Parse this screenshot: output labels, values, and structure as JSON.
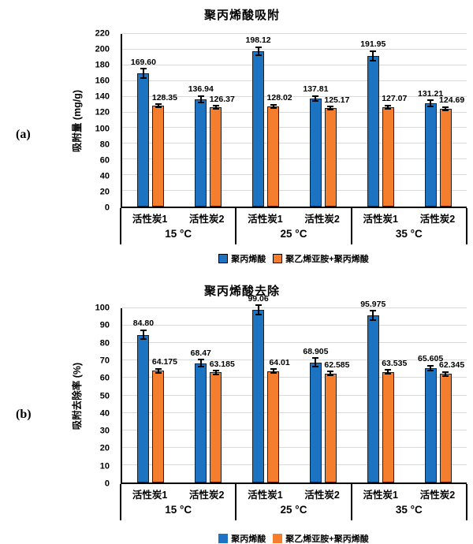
{
  "chart_data": [
    {
      "type": "bar",
      "panel_label": "(a)",
      "title": "聚丙烯酸吸附",
      "y_axis": {
        "label": "吸附量 (mg/g)",
        "min": 0,
        "max": 220,
        "step": 20
      },
      "x_axis": {
        "groups": [
          "15 °C",
          "25 °C",
          "35 °C"
        ],
        "categories": [
          "活性炭1",
          "活性炭2"
        ],
        "value_order": "15°C-活性炭1, 15°C-活性炭2, 25°C-活性炭1, 25°C-活性炭2, 35°C-活性炭1, 35°C-活性炭2"
      },
      "series": [
        {
          "name": "聚丙烯酸",
          "color": "#1B73C2",
          "values": [
            "169.60",
            "136.94",
            "198.12",
            "137.81",
            "191.95",
            "131.21"
          ],
          "errors": [
            7,
            5,
            6,
            4,
            7,
            5
          ]
        },
        {
          "name": "聚乙烯亚胺+聚丙烯酸",
          "color": "#F47E2D",
          "values": [
            "128.35",
            "126.37",
            "128.02",
            "125.17",
            "127.07",
            "124.69"
          ],
          "errors": [
            3,
            3,
            3,
            3,
            3,
            3
          ]
        }
      ],
      "legend": {
        "position": "bottom",
        "swatch_border": true
      },
      "grid": true,
      "colors": {
        "axis": "#000000",
        "gridline": "#d9d9d9"
      }
    },
    {
      "type": "bar",
      "panel_label": "(b)",
      "title": "聚丙烯酸去除",
      "y_axis": {
        "label": "吸附去除率 (%)",
        "min": 0,
        "max": 100,
        "step": 10
      },
      "x_axis": {
        "groups": [
          "15 °C",
          "25 °C",
          "35 °C"
        ],
        "categories": [
          "活性炭1",
          "活性炭2"
        ],
        "value_order": "15°C-活性炭1, 15°C-活性炭2, 25°C-活性炭1, 25°C-活性炭2, 35°C-活性炭1, 35°C-活性炭2"
      },
      "series": [
        {
          "name": "聚丙烯酸",
          "color": "#1B73C2",
          "values": [
            "84.80",
            "68.47",
            "99.06",
            "68.905",
            "95.975",
            "65.605"
          ],
          "errors": [
            3,
            2.5,
            3,
            3,
            3,
            2
          ]
        },
        {
          "name": "聚乙烯亚胺+聚丙烯酸",
          "color": "#F47E2D",
          "values": [
            "64.175",
            "63.185",
            "64.01",
            "62.585",
            "63.535",
            "62.345"
          ],
          "errors": [
            1.5,
            1.5,
            1.5,
            1.5,
            1.5,
            1.5
          ]
        }
      ],
      "legend": {
        "position": "bottom",
        "swatch_border": false
      },
      "grid": true,
      "colors": {
        "axis": "#000000",
        "gridline": "#d9d9d9"
      }
    }
  ]
}
